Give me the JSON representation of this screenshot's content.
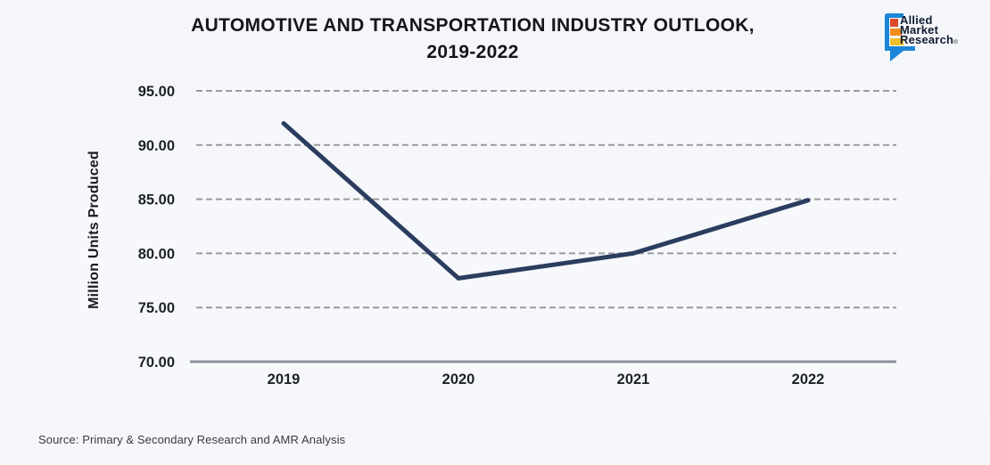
{
  "header": {
    "title_line1": "AUTOMOTIVE AND TRANSPORTATION INDUSTRY OUTLOOK,",
    "title_line2": "2019-2022"
  },
  "logo": {
    "name_line1": "Allied",
    "name_line2": "Market",
    "name_line3": "Research",
    "registered_mark": "®",
    "bubble_color": "#1b86d8",
    "bar_colors": [
      "#dd4a2a",
      "#ef8d1f",
      "#f2c12e"
    ]
  },
  "chart_data": {
    "type": "line",
    "title": "AUTOMOTIVE AND TRANSPORTATION INDUSTRY OUTLOOK, 2019-2022",
    "categories": [
      "2019",
      "2020",
      "2021",
      "2022"
    ],
    "values": [
      92.0,
      77.7,
      80.0,
      84.9
    ],
    "xlabel": "",
    "ylabel": "Million Units Produced",
    "ylim": [
      70,
      95
    ],
    "yticks": [
      95,
      90,
      85,
      80,
      75,
      70
    ],
    "ytick_decimals": 2,
    "grid": "horizontal-dashed",
    "legend": "none",
    "colors": {
      "line": "#2b3d5f",
      "gridline": "#9b9b9b",
      "axis": "#8e939c",
      "tick_text": "#1e2126"
    }
  },
  "footer": {
    "source": "Source: Primary & Secondary Research and AMR Analysis"
  }
}
